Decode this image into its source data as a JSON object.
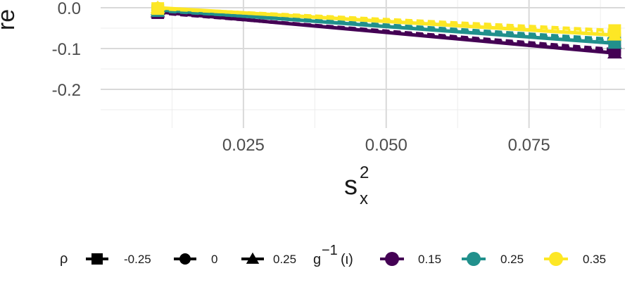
{
  "chart_data": {
    "type": "line",
    "ylabel": "re",
    "xlabel": "s_x^2",
    "xlabel_base": "s",
    "xlabel_sub": "x",
    "xlabel_sup": "2",
    "x_ticks": [
      0.025,
      0.05,
      0.075
    ],
    "x_tick_labels": [
      "0.025",
      "0.050",
      "0.075"
    ],
    "y_ticks": [
      0.0,
      -0.1,
      -0.2
    ],
    "y_tick_labels": [
      "0.0",
      "-0.1",
      "-0.2"
    ],
    "xlim": [
      0.0,
      0.0918
    ],
    "ylim": [
      -0.24,
      0.02
    ],
    "grid": true,
    "legend_position": "bottom",
    "rho_legend": {
      "title": "ρ",
      "entries": [
        {
          "label": "-0.25",
          "shape": "square"
        },
        {
          "label": "0",
          "shape": "circle"
        },
        {
          "label": "0.25",
          "shape": "triangle"
        }
      ]
    },
    "ginv_legend": {
      "title_base": "g",
      "title_sup": "−1",
      "title_arg": "(ι)",
      "entries": [
        {
          "label": "0.15",
          "color": "#440154"
        },
        {
          "label": "0.25",
          "color": "#21908C"
        },
        {
          "label": "0.35",
          "color": "#FDE725"
        }
      ]
    },
    "series": [
      {
        "name": "0.15",
        "color": "#440154",
        "rho": "-0.25",
        "x": [
          0.01,
          0.09
        ],
        "y": [
          -0.012,
          -0.103
        ]
      },
      {
        "name": "0.15",
        "color": "#440154",
        "rho": "0",
        "x": [
          0.01,
          0.09
        ],
        "y": [
          -0.011,
          -0.107
        ]
      },
      {
        "name": "0.15",
        "color": "#440154",
        "rho": "0.25",
        "x": [
          0.01,
          0.09
        ],
        "y": [
          -0.01,
          -0.111
        ]
      },
      {
        "name": "0.25",
        "color": "#21908C",
        "rho": "-0.25",
        "x": [
          0.01,
          0.09
        ],
        "y": [
          -0.007,
          -0.078
        ]
      },
      {
        "name": "0.25",
        "color": "#21908C",
        "rho": "0",
        "x": [
          0.01,
          0.09
        ],
        "y": [
          -0.006,
          -0.083
        ]
      },
      {
        "name": "0.25",
        "color": "#21908C",
        "rho": "0.25",
        "x": [
          0.01,
          0.09
        ],
        "y": [
          -0.005,
          -0.087
        ]
      },
      {
        "name": "0.35",
        "color": "#FDE725",
        "rho": "-0.25",
        "x": [
          0.01,
          0.09
        ],
        "y": [
          -0.002,
          -0.056
        ]
      },
      {
        "name": "0.35",
        "color": "#FDE725",
        "rho": "0",
        "x": [
          0.01,
          0.09
        ],
        "y": [
          -0.001,
          -0.062
        ]
      },
      {
        "name": "0.35",
        "color": "#FDE725",
        "rho": "0.25",
        "x": [
          0.01,
          0.09
        ],
        "y": [
          0.0,
          -0.067
        ]
      }
    ]
  }
}
